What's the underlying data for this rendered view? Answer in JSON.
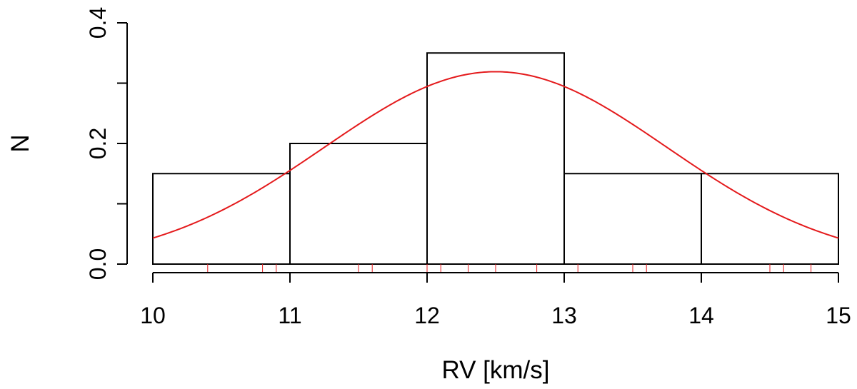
{
  "chart_data": {
    "type": "bar",
    "title": "",
    "xlabel": "RV [km/s]",
    "ylabel": "N",
    "xlim": [
      10,
      15
    ],
    "ylim": [
      0,
      0.4
    ],
    "x_ticks": [
      10,
      11,
      12,
      13,
      14,
      15
    ],
    "y_ticks": [
      0.0,
      0.1,
      0.2,
      0.3,
      0.4
    ],
    "y_tick_labels": [
      "0.0",
      "",
      "0.2",
      "",
      "0.4"
    ],
    "bins": [
      {
        "x0": 10,
        "x1": 11,
        "value": 0.15
      },
      {
        "x0": 11,
        "x1": 12,
        "value": 0.2
      },
      {
        "x0": 12,
        "x1": 13,
        "value": 0.35
      },
      {
        "x0": 13,
        "x1": 14,
        "value": 0.15
      },
      {
        "x0": 14,
        "x1": 15,
        "value": 0.15
      }
    ],
    "fit_curve": {
      "type": "gaussian",
      "mean": 12.5,
      "sigma": 1.25,
      "peak": 0.319,
      "color": "#e41a1c"
    },
    "rug": {
      "values": [
        10.4,
        10.8,
        10.9,
        11.5,
        11.6,
        12.0,
        12.1,
        12.3,
        12.5,
        12.8,
        13.1,
        13.5,
        13.6,
        14.5,
        14.6,
        14.8
      ],
      "color": "#e41a1c"
    },
    "grid": false,
    "legend": "none"
  }
}
